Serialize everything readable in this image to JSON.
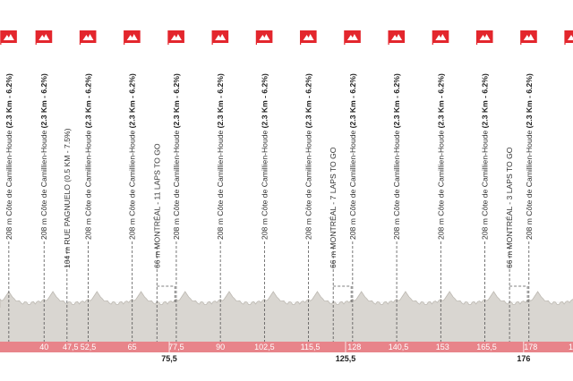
{
  "chart_data": {
    "type": "area",
    "title": "",
    "xlabel": "",
    "ylabel": "",
    "x_unit": "km",
    "xlim": [
      27.5,
      190
    ],
    "profile_color": "#d9d6d1",
    "flag_color": "#e3262d",
    "axis_band_color": "#e8848a",
    "markers": [
      {
        "km": 30,
        "name": "208 m Côte de Camillien-Houde",
        "detail": "(2.3 Km - 6.2%)",
        "flag": true
      },
      {
        "km": 40,
        "name": "208 m Côte de Camillien-Houde",
        "detail": "(2.3 Km - 6.2%)",
        "flag": true
      },
      {
        "km": 46.5,
        "name": "104 m RUE PAGNUELO (0.5 KM - 7.5%)",
        "detail": "",
        "flag": false
      },
      {
        "km": 52.5,
        "name": "208 m Côte de Camillien-Houde",
        "detail": "(2.3 Km - 6.2%)",
        "flag": true
      },
      {
        "km": 65,
        "name": "208 m Côte de Camillien-Houde",
        "detail": "(2.3 Km - 6.2%)",
        "flag": true
      },
      {
        "km": 72,
        "name": "66 m MONTRÉAL - 11 LAPS TO GO",
        "detail": "",
        "flag": false
      },
      {
        "km": 77.5,
        "name": "208 m Côte de Camillien-Houde",
        "detail": "(2.3 Km - 6.2%)",
        "flag": true
      },
      {
        "km": 90,
        "name": "208 m Côte de Camillien-Houde",
        "detail": "(2.3 Km - 6.2%)",
        "flag": true
      },
      {
        "km": 102.5,
        "name": "208 m Côte de Camillien-Houde",
        "detail": "(2.3 Km - 6.2%)",
        "flag": true
      },
      {
        "km": 115,
        "name": "208 m Côte de Camillien-Houde",
        "detail": "(2.3 Km - 6.2%)",
        "flag": true
      },
      {
        "km": 122,
        "name": "66 m MONTRÉAL - 7 LAPS TO GO",
        "detail": "",
        "flag": false
      },
      {
        "km": 127.5,
        "name": "208 m Côte de Camillien-Houde",
        "detail": "(2.3 Km - 6.2%)",
        "flag": true
      },
      {
        "km": 140,
        "name": "208 m Côte de Camillien-Houde",
        "detail": "(2.3 Km - 6.2%)",
        "flag": true
      },
      {
        "km": 152.5,
        "name": "208 m Côte de Camillien-Houde",
        "detail": "(2.3 Km - 6.2%)",
        "flag": true
      },
      {
        "km": 165,
        "name": "208 m Côte de Camillien-Houde",
        "detail": "(2.3 Km - 6.2%)",
        "flag": true
      },
      {
        "km": 172,
        "name": "66 m MONTRÉAL - 3 LAPS TO GO",
        "detail": "",
        "flag": false
      },
      {
        "km": 177.5,
        "name": "208 m Côte de Camillien-Houde",
        "detail": "(2.3 Km - 6.2%)",
        "flag": true
      },
      {
        "km": 190,
        "name": "",
        "detail": "",
        "flag": true
      }
    ],
    "km_ticks": [
      "40",
      "47,5",
      "52,5",
      "65",
      "77,5",
      "90",
      "102,5",
      "115,5",
      "128",
      "140,5",
      "153",
      "165,5",
      "178",
      "1"
    ],
    "km_ticks_below": [
      "75,5",
      "125,5",
      "176"
    ]
  }
}
